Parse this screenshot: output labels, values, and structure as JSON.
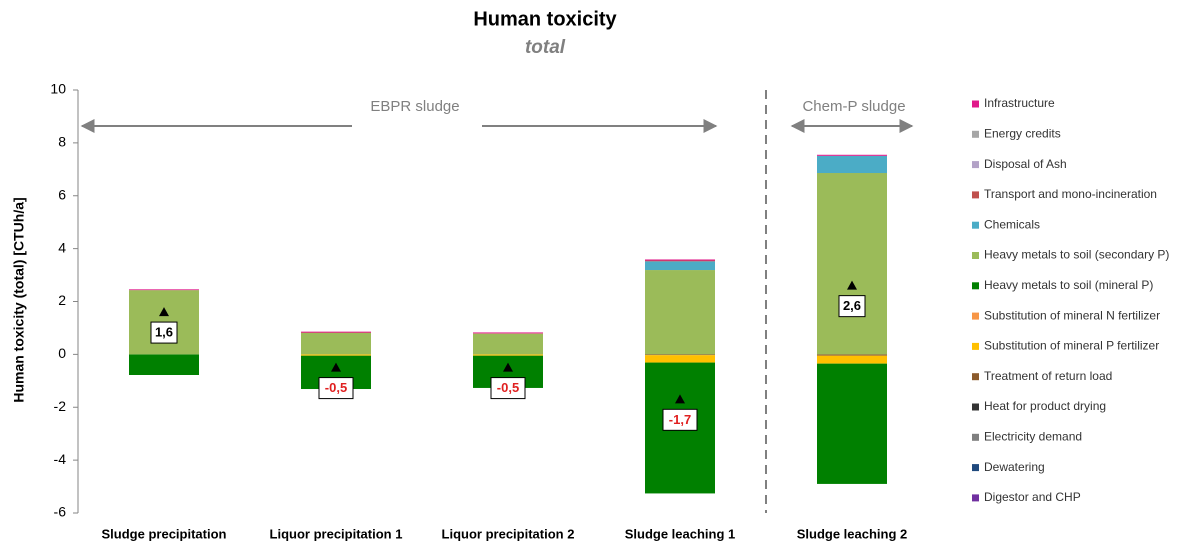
{
  "chart_data": {
    "type": "stacked-bar",
    "title": "Human toxicity",
    "subtitle": "total",
    "y_label": "Human toxicity (total) [CTUh/a]",
    "categories": [
      "Sludge precipitation",
      "Liquor precipitation 1",
      "Liquor precipitation 2",
      "Sludge leaching 1",
      "Sludge leaching 2"
    ],
    "ylim": [
      -6,
      10
    ],
    "yticks": [
      -6,
      -4,
      -2,
      0,
      2,
      4,
      6,
      8,
      10
    ],
    "series": [
      {
        "name": "Infrastructure",
        "color": "#e0198a",
        "values": [
          0.03,
          0.03,
          0.03,
          0.04,
          0.04
        ]
      },
      {
        "name": "Energy credits",
        "color": "#a6a6a6",
        "values": [
          0,
          0,
          0,
          0,
          0
        ]
      },
      {
        "name": "Disposal of Ash",
        "color": "#b3a2c7",
        "values": [
          0,
          0,
          0,
          0,
          0
        ]
      },
      {
        "name": "Transport and mono-incineration",
        "color": "#c0504d",
        "values": [
          0,
          0.02,
          0.02,
          0.03,
          0
        ]
      },
      {
        "name": "Chemicals",
        "color": "#4bacc6",
        "values": [
          0,
          0,
          0,
          0.33,
          0.65
        ]
      },
      {
        "name": "Heavy metals to soil (secondary P)",
        "color": "#9bbb59",
        "values": [
          2.43,
          0.81,
          0.78,
          3.19,
          6.86
        ]
      },
      {
        "name": "Heavy metals to soil (mineral P)",
        "color": "#008000",
        "values": [
          -0.78,
          -1.26,
          -1.22,
          -4.95,
          -4.55
        ]
      },
      {
        "name": "Substitution of mineral N fertilizer",
        "color": "#f79646",
        "values": [
          0,
          0,
          0,
          0,
          0
        ]
      },
      {
        "name": "Substitution of mineral P fertilizer",
        "color": "#ffc000",
        "values": [
          0,
          -0.05,
          -0.05,
          -0.28,
          -0.3
        ]
      },
      {
        "name": "Treatment of return load",
        "color": "#8b5a2b",
        "values": [
          0,
          0,
          0,
          -0.03,
          -0.05
        ]
      },
      {
        "name": "Heat for product drying",
        "color": "#333333",
        "values": [
          0,
          0,
          0,
          0,
          0
        ]
      },
      {
        "name": "Electricity demand",
        "color": "#7f7f7f",
        "values": [
          0,
          0,
          0,
          0,
          0
        ]
      },
      {
        "name": "Dewatering",
        "color": "#1f497d",
        "values": [
          0,
          0,
          0,
          0,
          0
        ]
      },
      {
        "name": "Digestor and CHP",
        "color": "#7030a0",
        "values": [
          0,
          0,
          0,
          0,
          0
        ]
      }
    ],
    "totals": {
      "values": [
        1.6,
        -0.5,
        -0.5,
        -1.7,
        2.6
      ],
      "value_labels": [
        "1,6",
        "-0,5",
        "-0,5",
        "-1,7",
        "2,6"
      ]
    },
    "annotations": [
      {
        "text": "EBPR sludge"
      },
      {
        "text": "Chem-P sludge"
      }
    ]
  }
}
